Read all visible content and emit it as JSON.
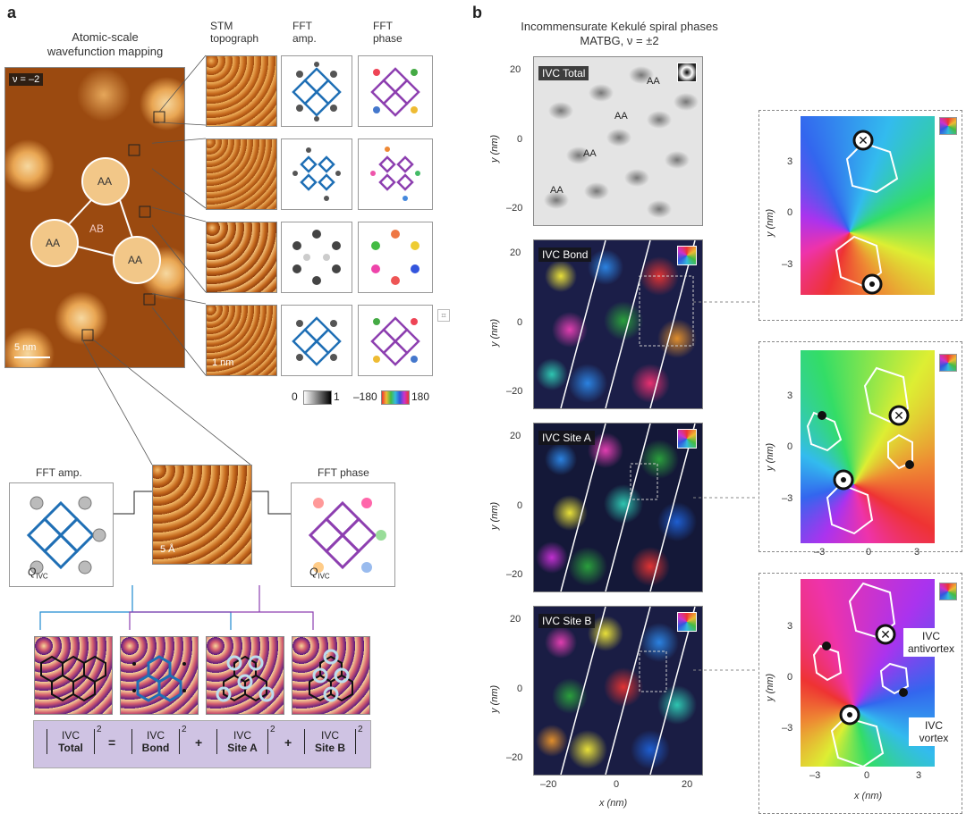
{
  "panel_a": {
    "letter": "a",
    "title": "Atomic-scale wavefunction mapping",
    "filling": "ν = –2",
    "labels": {
      "aa": "AA",
      "ab": "AB"
    },
    "scale_5nm": "5 nm",
    "col_stm": "STM topograph",
    "col_amp": "FFT amp.",
    "col_phase": "FFT phase",
    "scale_1nm": "1 nm",
    "amp_min": "0",
    "amp_max": "1",
    "phase_min": "–180",
    "phase_max": "180",
    "bottom_amp": "FFT amp.",
    "bottom_phase": "FFT phase",
    "scale_5A": "5 Å",
    "q_ivc": "Q",
    "q_sub": "IVC",
    "eq": {
      "ivc": "IVC",
      "total": "Total",
      "bond": "Bond",
      "site_a": "Site A",
      "site_b": "Site B",
      "sq": "2",
      "equals": "=",
      "plus": "+"
    }
  },
  "panel_b": {
    "letter": "b",
    "title_line1": "Incommensurate Kekulé spiral phases",
    "title_line2": "MATBG, ν = ±2",
    "maps": [
      "IVC Total",
      "IVC Bond",
      "IVC Site A",
      "IVC Site B"
    ],
    "aa": "AA",
    "y_ticks": [
      "20",
      "0",
      "–20"
    ],
    "x_ticks": [
      "–20",
      "0",
      "20"
    ],
    "y_label": "y (nm)",
    "x_label": "x (nm)",
    "zoom_y_ticks": [
      "3",
      "0",
      "–3"
    ],
    "zoom_x_ticks": [
      "–3",
      "0",
      "3"
    ],
    "antivortex": "IVC antivortex",
    "vortex": "IVC vortex"
  },
  "colors": {
    "stm_orange": "#e08a2c",
    "amp_blue": "#1f6fb5",
    "phase_purple": "#8d3fb0",
    "eq_bg": "#cfc3e3"
  }
}
